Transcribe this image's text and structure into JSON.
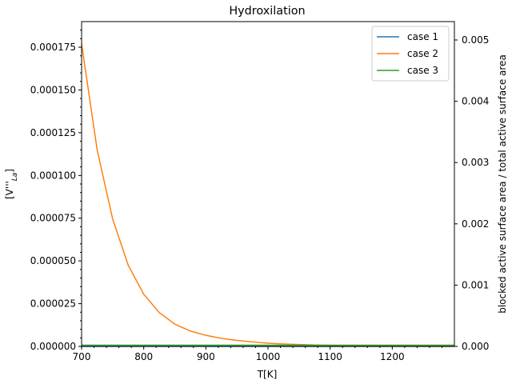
{
  "chart_data": {
    "type": "line",
    "title": "Hydroxilation",
    "xlabel": "T[K]",
    "ylabel_left": "[V'''La]",
    "ylabel_left_main": "[V'''",
    "ylabel_left_sub": "La",
    "ylabel_left_close": "]",
    "ylabel_right": "blocked active surface area / total active surface area",
    "xlim": [
      700,
      1300
    ],
    "ylim_left": [
      0,
      0.00019
    ],
    "ylim_right": [
      0,
      0.0053
    ],
    "x_ticks": [
      700,
      800,
      900,
      1000,
      1100,
      1200
    ],
    "x_tick_labels": [
      "700",
      "800",
      "900",
      "1000",
      "1100",
      "1200"
    ],
    "y_left_ticks": [
      0,
      2.5e-05,
      5e-05,
      7.5e-05,
      0.0001,
      0.000125,
      0.00015,
      0.000175
    ],
    "y_left_tick_labels": [
      "0.000000",
      "0.000025",
      "0.000050",
      "0.000075",
      "0.000100",
      "0.000125",
      "0.000150",
      "0.000175"
    ],
    "y_right_ticks": [
      0,
      0.001,
      0.002,
      0.003,
      0.004,
      0.005
    ],
    "y_right_tick_labels": [
      "0.000",
      "0.001",
      "0.002",
      "0.003",
      "0.004",
      "0.005"
    ],
    "legend_position": "top-right",
    "grid": false,
    "x": [
      700,
      725,
      750,
      775,
      800,
      825,
      850,
      875,
      900,
      925,
      950,
      975,
      1000,
      1025,
      1050,
      1075,
      1100,
      1125,
      1150,
      1175,
      1200,
      1225,
      1250,
      1275,
      1300
    ],
    "series": [
      {
        "name": "case 1",
        "color": "#1f77b4",
        "axis": "left",
        "values": [
          0,
          0,
          0,
          0,
          0,
          0,
          0,
          0,
          0,
          0,
          0,
          0,
          0,
          0,
          0,
          0,
          0,
          0,
          0,
          0,
          0,
          0,
          0,
          0,
          0
        ]
      },
      {
        "name": "case 2",
        "color": "#ff7f0e",
        "axis": "left",
        "values": [
          0.000177,
          0.000115,
          7.45e-05,
          4.75e-05,
          3.05e-05,
          1.98e-05,
          1.3e-05,
          9e-06,
          6.5e-06,
          4.7e-06,
          3.5e-06,
          2.6e-06,
          1.9e-06,
          1.4e-06,
          1.1e-06,
          8e-07,
          6e-07,
          4.5e-07,
          3.5e-07,
          2.7e-07,
          2e-07,
          1.5e-07,
          1.1e-07,
          8e-08,
          6e-08
        ]
      },
      {
        "name": "case 3",
        "color": "#2ca02c",
        "axis": "right",
        "values": [
          2e-05,
          2e-05,
          2e-05,
          2e-05,
          2e-05,
          2e-05,
          2e-05,
          2e-05,
          2e-05,
          2e-05,
          2e-05,
          2e-05,
          2e-05,
          2e-05,
          2e-05,
          2e-05,
          2e-05,
          2e-05,
          2e-05,
          2e-05,
          2e-05,
          2e-05,
          2e-05,
          2e-05,
          2e-05
        ]
      }
    ]
  }
}
